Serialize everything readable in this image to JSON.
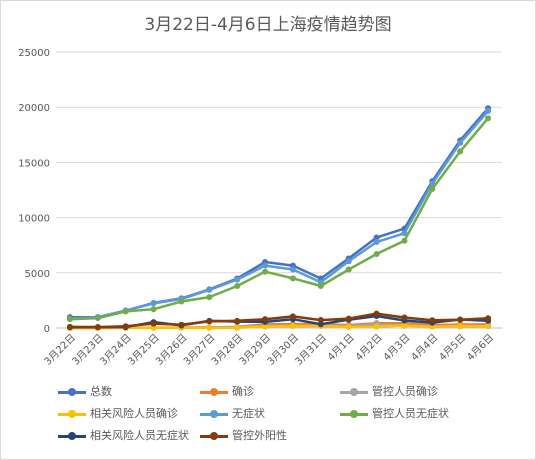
{
  "chart_data": {
    "type": "line",
    "title": "3月22日-4月6日上海疫情趋势图",
    "xlabel": "",
    "ylabel": "",
    "ylim": [
      0,
      25000
    ],
    "yticks": [
      0,
      5000,
      10000,
      15000,
      20000,
      25000
    ],
    "grid": true,
    "legend_position": "bottom",
    "categories": [
      "3月22日",
      "3月23日",
      "3月24日",
      "3月25日",
      "3月26日",
      "3月27日",
      "3月28日",
      "3月29日",
      "3月30日",
      "3月31日",
      "4月1日",
      "4月2日",
      "4月3日",
      "4月4日",
      "4月5日",
      "4月6日"
    ],
    "series": [
      {
        "name": "总数",
        "color": "#4472c4",
        "values": [
          980,
          980,
          1580,
          2270,
          2680,
          3500,
          4480,
          5980,
          5650,
          4480,
          6300,
          8200,
          9000,
          13300,
          17000,
          19900
        ]
      },
      {
        "name": "确诊",
        "color": "#ed7d31",
        "values": [
          4,
          4,
          29,
          38,
          45,
          50,
          96,
          326,
          355,
          358,
          260,
          438,
          425,
          268,
          311,
          322
        ]
      },
      {
        "name": "管控人员确诊",
        "color": "#a5a5a5",
        "values": [
          2,
          2,
          20,
          22,
          30,
          39,
          76,
          203,
          170,
          189,
          175,
          323,
          198,
          148,
          142,
          157
        ]
      },
      {
        "name": "相关风险人员确诊",
        "color": "#ffc000",
        "values": [
          2,
          2,
          9,
          16,
          15,
          11,
          20,
          123,
          185,
          169,
          85,
          115,
          227,
          120,
          169,
          165
        ]
      },
      {
        "name": "无症状",
        "color": "#5b9bd5",
        "values": [
          865,
          977,
          1580,
          2231,
          2631,
          3450,
          4381,
          5656,
          5298,
          4144,
          6051,
          7788,
          8581,
          13086,
          16766,
          19660
        ]
      },
      {
        "name": "管控人员无症状",
        "color": "#70ad47",
        "values": [
          800,
          900,
          1500,
          1700,
          2400,
          2800,
          3800,
          5100,
          4500,
          3800,
          5300,
          6700,
          7900,
          12600,
          16000,
          19000
        ]
      },
      {
        "name": "相关风险人员无症状",
        "color": "#264478",
        "values": [
          65,
          77,
          80,
          531,
          231,
          650,
          581,
          556,
          798,
          344,
          751,
          1088,
          681,
          486,
          766,
          660
        ]
      },
      {
        "name": "管控外阳性",
        "color": "#843c0c",
        "values": [
          100,
          80,
          160,
          400,
          300,
          600,
          650,
          800,
          1050,
          720,
          850,
          1300,
          950,
          700,
          750,
          880
        ]
      }
    ]
  }
}
